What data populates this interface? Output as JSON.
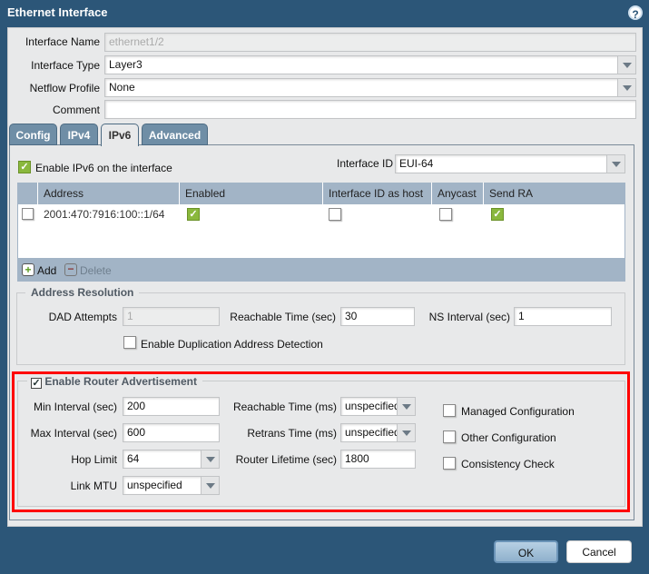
{
  "dialog": {
    "title": "Ethernet Interface",
    "help_icon": "question-circle-icon"
  },
  "fields": {
    "interface_name": {
      "label": "Interface Name",
      "value": "ethernet1/2"
    },
    "interface_type": {
      "label": "Interface Type",
      "value": "Layer3"
    },
    "netflow_profile": {
      "label": "Netflow Profile",
      "value": "None"
    },
    "comment": {
      "label": "Comment",
      "value": ""
    }
  },
  "tabs": [
    {
      "label": "Config"
    },
    {
      "label": "IPv4"
    },
    {
      "label": "IPv6",
      "active": true
    },
    {
      "label": "Advanced"
    }
  ],
  "ipv6": {
    "enable_label": "Enable IPv6 on the interface",
    "enable_checked": true,
    "interface_id_label": "Interface ID",
    "interface_id_value": "EUI-64",
    "table": {
      "columns": [
        "Address",
        "Enabled",
        "Interface ID as host",
        "Anycast",
        "Send RA"
      ],
      "rows": [
        {
          "address": "2001:470:7916:100::1/64",
          "enabled": true,
          "interface_id_as_host": false,
          "anycast": false,
          "send_ra": true
        }
      ]
    },
    "add_label": "Add",
    "delete_label": "Delete"
  },
  "address_resolution": {
    "legend": "Address Resolution",
    "dad_attempts": {
      "label": "DAD Attempts",
      "value": "1"
    },
    "reachable_time": {
      "label": "Reachable Time (sec)",
      "value": "30"
    },
    "ns_interval": {
      "label": "NS Interval (sec)",
      "value": "1"
    },
    "enable_dad_label": "Enable Duplication Address Detection",
    "enable_dad_checked": false
  },
  "router_advertisement": {
    "legend": "Enable Router Advertisement",
    "enabled": true,
    "min_interval": {
      "label": "Min Interval (sec)",
      "value": "200"
    },
    "max_interval": {
      "label": "Max Interval (sec)",
      "value": "600"
    },
    "hop_limit": {
      "label": "Hop Limit",
      "value": "64"
    },
    "link_mtu": {
      "label": "Link MTU",
      "value": "unspecified"
    },
    "reachable_time": {
      "label": "Reachable Time (ms)",
      "value": "unspecified"
    },
    "retrans_time": {
      "label": "Retrans Time (ms)",
      "value": "unspecified"
    },
    "router_lifetime": {
      "label": "Router Lifetime (sec)",
      "value": "1800"
    },
    "managed_config": {
      "label": "Managed Configuration",
      "checked": false
    },
    "other_config": {
      "label": "Other Configuration",
      "checked": false
    },
    "consistency_check": {
      "label": "Consistency Check",
      "checked": false
    },
    "highlight_color": "#ff0000"
  },
  "buttons": {
    "ok": "OK",
    "cancel": "Cancel"
  }
}
